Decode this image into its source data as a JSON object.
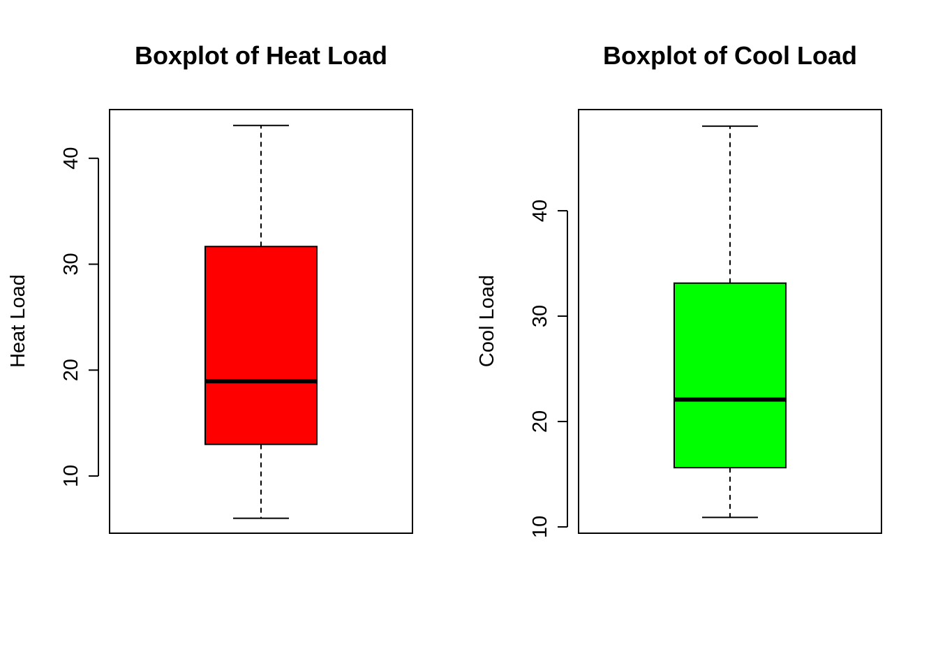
{
  "chart_data": [
    {
      "type": "boxplot",
      "title": "Boxplot of Heat Load",
      "xlabel": "",
      "ylabel": "Heat Load",
      "ylim": [
        4.6,
        44.6
      ],
      "yticks": [
        10,
        20,
        30,
        40
      ],
      "box_color": "#ff0000",
      "grid": false,
      "stats": {
        "min": 6.01,
        "q1": 12.99,
        "median": 18.95,
        "q3": 31.67,
        "max": 43.1
      }
    },
    {
      "type": "boxplot",
      "title": "Boxplot of Cool Load",
      "xlabel": "",
      "ylabel": "Cool Load",
      "ylim": [
        9.4,
        49.6
      ],
      "yticks": [
        10,
        20,
        30,
        40
      ],
      "box_color": "#00ff00",
      "grid": false,
      "stats": {
        "min": 10.9,
        "q1": 15.62,
        "median": 22.08,
        "q3": 33.13,
        "max": 48.03
      }
    }
  ]
}
